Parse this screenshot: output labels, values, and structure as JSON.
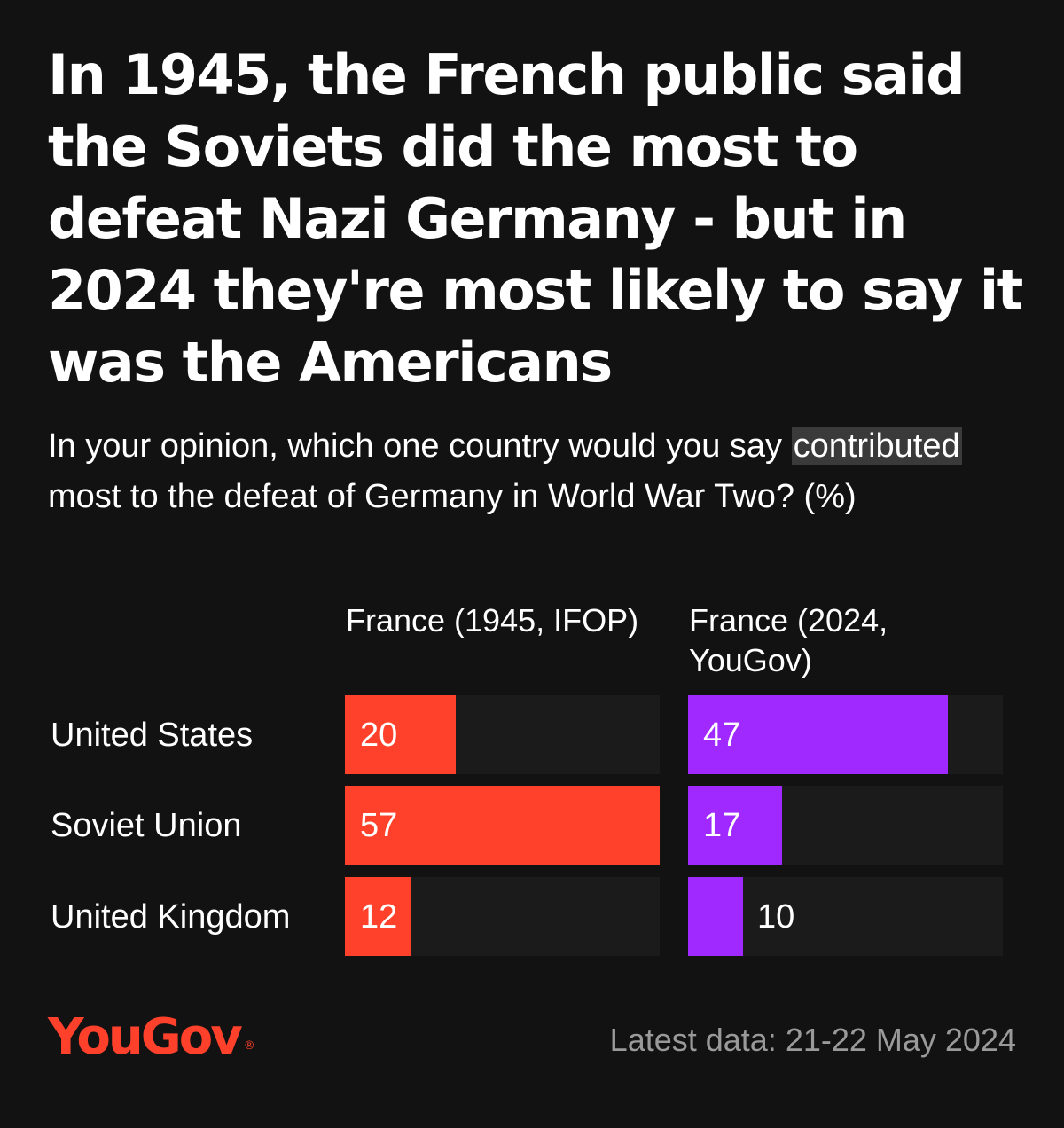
{
  "title": "In 1945, the French public said the Soviets did the most to defeat Nazi Germany - but in 2024 they're most likely to say it was the Americans",
  "subtitle": {
    "before": "In your opinion, which one country would you say ",
    "highlight": "contributed",
    "after": " most to the defeat of Germany in World War Two? (%)"
  },
  "colors": {
    "background": "#121212",
    "bar_1945": "#ff412c",
    "bar_2024": "#9f29ff",
    "logo": "#ff412c",
    "footer_text": "#9a9a9a"
  },
  "chart_data": {
    "type": "bar",
    "orientation": "horizontal",
    "categories": [
      "United States",
      "Soviet Union",
      "United Kingdom"
    ],
    "series": [
      {
        "name": "France (1945, IFOP)",
        "values": [
          20,
          57,
          12
        ]
      },
      {
        "name": "France (2024, YouGov)",
        "values": [
          47,
          17,
          10
        ]
      }
    ],
    "xlim": [
      0,
      57
    ],
    "grid": false,
    "legend": "column headers above each panel"
  },
  "footer": {
    "logo": "YouGov",
    "logo_mark": "®",
    "note": "Latest data: 21-22 May 2024"
  }
}
